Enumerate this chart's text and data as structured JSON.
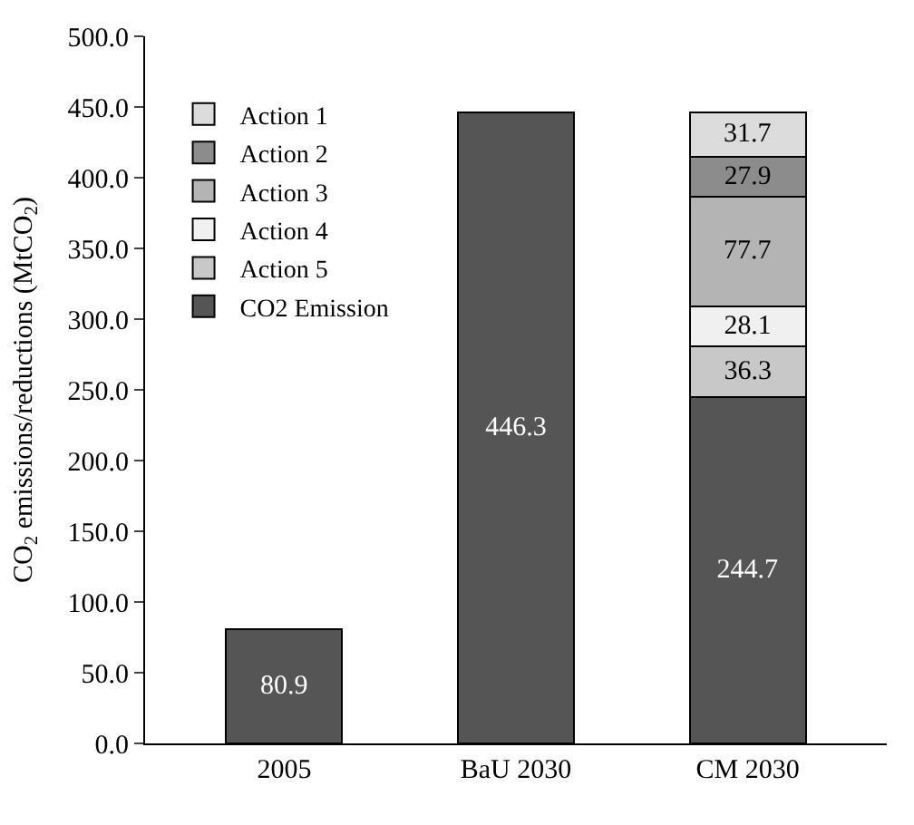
{
  "chart_data": {
    "type": "bar",
    "stacked": true,
    "ylabel": "CO$_{2}$ emissions/reductions (MtCO$_{2}$)",
    "categories": [
      "2005",
      "BaU 2030",
      "CM 2030"
    ],
    "series": [
      {
        "name": "CO2 Emission",
        "color": "#555555",
        "values": [
          80.9,
          446.3,
          244.7
        ]
      },
      {
        "name": "Action 5",
        "color": "#c8c8c8",
        "values": [
          null,
          null,
          36.3
        ]
      },
      {
        "name": "Action 4",
        "color": "#f0f0f0",
        "values": [
          null,
          null,
          28.1
        ]
      },
      {
        "name": "Action 3",
        "color": "#b4b4b4",
        "values": [
          null,
          null,
          77.7
        ]
      },
      {
        "name": "Action 2",
        "color": "#8c8c8c",
        "values": [
          null,
          null,
          27.9
        ]
      },
      {
        "name": "Action 1",
        "color": "#dcdcdc",
        "values": [
          null,
          null,
          31.7
        ]
      }
    ],
    "ylim": [
      0,
      500
    ],
    "yticks": [
      {
        "value": 0,
        "label": "0.0"
      },
      {
        "value": 50,
        "label": "50.0"
      },
      {
        "value": 100,
        "label": "100.0"
      },
      {
        "value": 150,
        "label": "150.0"
      },
      {
        "value": 200,
        "label": "200.0"
      },
      {
        "value": 250,
        "label": "250.0"
      },
      {
        "value": 300,
        "label": "300.0"
      },
      {
        "value": 350,
        "label": "350.0"
      },
      {
        "value": 400,
        "label": "400.0"
      },
      {
        "value": 450,
        "label": "450.0"
      },
      {
        "value": 500,
        "label": "500.0"
      }
    ],
    "data_labels": true,
    "legend": "top left"
  }
}
